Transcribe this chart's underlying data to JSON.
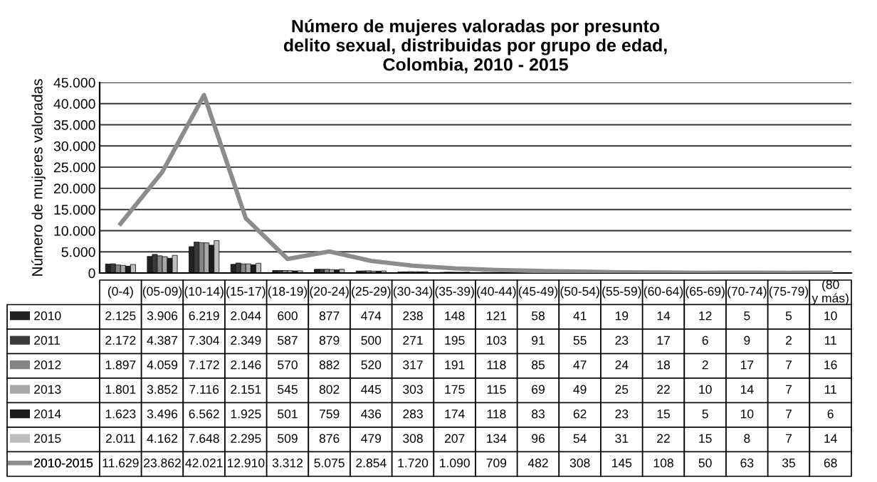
{
  "chart_data": {
    "type": "bar",
    "title": "Número de mujeres valoradas por presunto\ndelito sexual, distribuidas por grupo de edad,\nColombia, 2010 - 2015",
    "ylabel": "Número de mujeres valoradas",
    "categories": [
      "(0-4)",
      "(05-09)",
      "(10-14)",
      "(15-17)",
      "(18-19)",
      "(20-24)",
      "(25-29)",
      "(30-34)",
      "(35-39)",
      "(40-44)",
      "(45-49)",
      "(50-54)",
      "(55-59)",
      "(60-64)",
      "(65-69)",
      "(70-74)",
      "(75-79)",
      "(80\ny más)"
    ],
    "series": [
      {
        "name": "2010",
        "color": "#222222",
        "values": [
          2125,
          3906,
          6219,
          2044,
          600,
          877,
          474,
          238,
          148,
          121,
          58,
          41,
          19,
          14,
          12,
          5,
          5,
          10
        ],
        "value_labels": [
          "2.125",
          "3.906",
          "6.219",
          "2.044",
          "600",
          "877",
          "474",
          "238",
          "148",
          "121",
          "58",
          "41",
          "19",
          "14",
          "12",
          "5",
          "5",
          "10"
        ]
      },
      {
        "name": "2011",
        "color": "#3a3a3a",
        "values": [
          2172,
          4387,
          7304,
          2349,
          587,
          879,
          500,
          271,
          195,
          103,
          91,
          55,
          23,
          17,
          6,
          9,
          2,
          11
        ],
        "value_labels": [
          "2.172",
          "4.387",
          "7.304",
          "2.349",
          "587",
          "879",
          "500",
          "271",
          "195",
          "103",
          "91",
          "55",
          "23",
          "17",
          "6",
          "9",
          "2",
          "11"
        ]
      },
      {
        "name": "2012",
        "color": "#858585",
        "values": [
          1897,
          4059,
          7172,
          2146,
          570,
          882,
          520,
          317,
          191,
          118,
          85,
          47,
          24,
          18,
          2,
          17,
          7,
          16
        ],
        "value_labels": [
          "1.897",
          "4.059",
          "7.172",
          "2.146",
          "570",
          "882",
          "520",
          "317",
          "191",
          "118",
          "85",
          "47",
          "24",
          "18",
          "2",
          "17",
          "7",
          "16"
        ]
      },
      {
        "name": "2013",
        "color": "#a8a8a8",
        "values": [
          1801,
          3852,
          7116,
          2151,
          545,
          802,
          445,
          303,
          175,
          115,
          69,
          49,
          25,
          22,
          10,
          14,
          7,
          11
        ],
        "value_labels": [
          "1.801",
          "3.852",
          "7.116",
          "2.151",
          "545",
          "802",
          "445",
          "303",
          "175",
          "115",
          "69",
          "49",
          "25",
          "22",
          "10",
          "14",
          "7",
          "11"
        ]
      },
      {
        "name": "2014",
        "color": "#1c1c1c",
        "values": [
          1623,
          3496,
          6562,
          1925,
          501,
          759,
          436,
          283,
          174,
          118,
          83,
          62,
          23,
          15,
          5,
          10,
          7,
          6
        ],
        "value_labels": [
          "1.623",
          "3.496",
          "6.562",
          "1.925",
          "501",
          "759",
          "436",
          "283",
          "174",
          "118",
          "83",
          "62",
          "23",
          "15",
          "5",
          "10",
          "7",
          "6"
        ]
      },
      {
        "name": "2015",
        "color": "#bdbdbd",
        "values": [
          2011,
          4162,
          7648,
          2295,
          509,
          876,
          479,
          308,
          207,
          134,
          96,
          54,
          31,
          22,
          15,
          8,
          7,
          14
        ],
        "value_labels": [
          "2.011",
          "4.162",
          "7.648",
          "2.295",
          "509",
          "876",
          "479",
          "308",
          "207",
          "134",
          "96",
          "54",
          "31",
          "22",
          "15",
          "8",
          "7",
          "14"
        ]
      },
      {
        "name": "2010-2015",
        "type": "line",
        "color": "#8c8c8c",
        "values": [
          11629,
          23862,
          42021,
          12910,
          3312,
          5075,
          2854,
          1720,
          1090,
          709,
          482,
          308,
          145,
          108,
          50,
          63,
          35,
          68
        ],
        "value_labels": [
          "11.629",
          "23.862",
          "42.021",
          "12.910",
          "3.312",
          "5.075",
          "2.854",
          "1.720",
          "1.090",
          "709",
          "482",
          "308",
          "145",
          "108",
          "50",
          "63",
          "35",
          "68"
        ]
      }
    ],
    "ylim": [
      0,
      45000
    ],
    "yticks": [
      {
        "value": 0,
        "label": "0"
      },
      {
        "value": 5000,
        "label": "5.000"
      },
      {
        "value": 10000,
        "label": "10.000"
      },
      {
        "value": 15000,
        "label": "15.000"
      },
      {
        "value": 20000,
        "label": "20.000"
      },
      {
        "value": 25000,
        "label": "25.000"
      },
      {
        "value": 30000,
        "label": "30.000"
      },
      {
        "value": 35000,
        "label": "35.000"
      },
      {
        "value": 40000,
        "label": "40.000"
      },
      {
        "value": 45000,
        "label": "45.000"
      }
    ],
    "grid": "y",
    "legend": "bottom left"
  }
}
